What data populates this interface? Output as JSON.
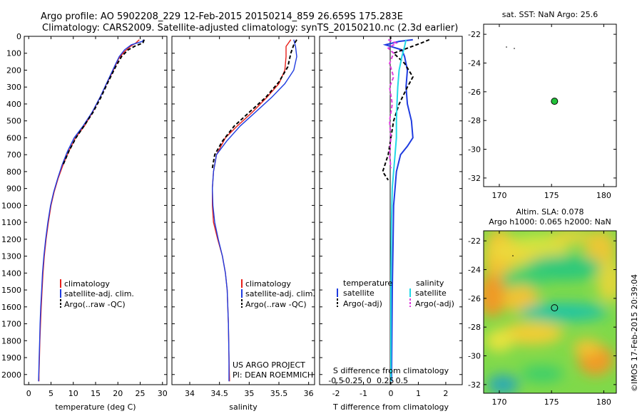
{
  "titles": {
    "line1": "Argo profile: AO 5902208_229 12-Feb-2015 20150214_859 26.659S 175.283E",
    "line2": "Climatology: CARS2009. Satellite-adjusted climatology: synTS_20150210.nc (2.3d earlier)"
  },
  "colors": {
    "climatology": "#e8201a",
    "satellite": "#1f3ce0",
    "argo": "#000000",
    "sat_salinity": "#22d8e6",
    "argo_salinity": "#e03ce0",
    "float_marker": "#22c23a"
  },
  "credit": "©IMOS 17-Feb-2015 20:39:04",
  "chart_data": [
    {
      "id": "temperature-profile",
      "type": "line",
      "xlabel": "temperature (deg C)",
      "ylabel": "",
      "xlim": [
        -1,
        31
      ],
      "ylim": [
        2060,
        0
      ],
      "xticks": [
        0,
        5,
        10,
        15,
        20,
        25,
        30
      ],
      "yticks": [
        0,
        100,
        200,
        300,
        400,
        500,
        600,
        700,
        800,
        900,
        1000,
        1100,
        1200,
        1300,
        1400,
        1500,
        1600,
        1700,
        1800,
        1900,
        2000
      ],
      "legend": [
        "climatology",
        "satellite-adj. clim.",
        "Argo(..raw -QC)"
      ],
      "series": [
        {
          "key": "climatology",
          "color": "#e8201a",
          "dash": "",
          "points": [
            [
              24.8,
              20
            ],
            [
              24,
              40
            ],
            [
              22.8,
              60
            ],
            [
              21.5,
              90
            ],
            [
              20.2,
              130
            ],
            [
              19,
              200
            ],
            [
              17.5,
              280
            ],
            [
              16,
              360
            ],
            [
              14.3,
              450
            ],
            [
              12.5,
              530
            ],
            [
              10.5,
              600
            ],
            [
              9,
              680
            ],
            [
              7.7,
              760
            ],
            [
              6.6,
              840
            ],
            [
              5.7,
              920
            ],
            [
              5,
              1000
            ],
            [
              4.4,
              1100
            ],
            [
              3.9,
              1200
            ],
            [
              3.5,
              1300
            ],
            [
              3.2,
              1400
            ],
            [
              3,
              1500
            ],
            [
              2.8,
              1600
            ],
            [
              2.65,
              1700
            ],
            [
              2.5,
              1800
            ],
            [
              2.4,
              1900
            ],
            [
              2.3,
              2000
            ],
            [
              2.3,
              2040
            ]
          ]
        },
        {
          "key": "satellite",
          "color": "#1f3ce0",
          "dash": "",
          "points": [
            [
              25.8,
              20
            ],
            [
              25.5,
              30
            ],
            [
              23,
              50
            ],
            [
              21.5,
              80
            ],
            [
              20.3,
              120
            ],
            [
              19.2,
              180
            ],
            [
              17.6,
              270
            ],
            [
              16,
              360
            ],
            [
              14.2,
              450
            ],
            [
              12.2,
              530
            ],
            [
              10.2,
              600
            ],
            [
              8.7,
              680
            ],
            [
              7.5,
              760
            ],
            [
              6.5,
              840
            ],
            [
              5.6,
              920
            ],
            [
              4.9,
              1000
            ],
            [
              4.3,
              1100
            ],
            [
              3.8,
              1200
            ],
            [
              3.4,
              1300
            ],
            [
              3.1,
              1400
            ],
            [
              2.9,
              1500
            ],
            [
              2.7,
              1600
            ],
            [
              2.55,
              1700
            ],
            [
              2.45,
              1800
            ],
            [
              2.35,
              1900
            ],
            [
              2.25,
              2000
            ],
            [
              2.2,
              2040
            ]
          ]
        },
        {
          "key": "argo",
          "color": "#000000",
          "dash": "5,3",
          "points": [
            [
              25.9,
              20
            ],
            [
              25.6,
              40
            ],
            [
              24,
              55
            ],
            [
              22.3,
              80
            ],
            [
              20.8,
              120
            ],
            [
              19.5,
              180
            ],
            [
              17.8,
              270
            ],
            [
              16.2,
              360
            ],
            [
              14.4,
              450
            ],
            [
              12.4,
              530
            ],
            [
              10.6,
              600
            ],
            [
              9,
              680
            ],
            [
              7.7,
              760
            ]
          ]
        }
      ]
    },
    {
      "id": "salinity-profile",
      "type": "line",
      "xlabel": "salinity",
      "ylabel": "",
      "xlim": [
        33.7,
        36.1
      ],
      "ylim": [
        2060,
        0
      ],
      "xticks": [
        34,
        34.5,
        35,
        35.5,
        36
      ],
      "legend": [
        "climatology",
        "satellite-adj. clim.",
        "Argo(..raw -QC)"
      ],
      "series": [
        {
          "key": "climatology",
          "color": "#e8201a",
          "dash": "",
          "points": [
            [
              35.7,
              20
            ],
            [
              35.62,
              60
            ],
            [
              35.62,
              120
            ],
            [
              35.6,
              200
            ],
            [
              35.5,
              280
            ],
            [
              35.3,
              360
            ],
            [
              35.05,
              450
            ],
            [
              34.8,
              530
            ],
            [
              34.6,
              600
            ],
            [
              34.45,
              700
            ],
            [
              34.4,
              800
            ],
            [
              34.38,
              900
            ],
            [
              34.38,
              1000
            ],
            [
              34.4,
              1100
            ],
            [
              34.47,
              1200
            ],
            [
              34.55,
              1300
            ],
            [
              34.6,
              1400
            ],
            [
              34.63,
              1500
            ],
            [
              34.65,
              1700
            ],
            [
              34.66,
              1900
            ],
            [
              34.67,
              2040
            ]
          ]
        },
        {
          "key": "satellite",
          "color": "#1f3ce0",
          "dash": "",
          "points": [
            [
              35.75,
              20
            ],
            [
              35.78,
              60
            ],
            [
              35.8,
              120
            ],
            [
              35.75,
              200
            ],
            [
              35.6,
              280
            ],
            [
              35.38,
              360
            ],
            [
              35.1,
              450
            ],
            [
              34.85,
              530
            ],
            [
              34.62,
              620
            ],
            [
              34.45,
              700
            ],
            [
              34.4,
              800
            ],
            [
              34.38,
              900
            ],
            [
              34.39,
              1000
            ],
            [
              34.42,
              1100
            ],
            [
              34.48,
              1200
            ],
            [
              34.55,
              1300
            ],
            [
              34.6,
              1400
            ],
            [
              34.63,
              1500
            ],
            [
              34.65,
              1700
            ],
            [
              34.66,
              1900
            ],
            [
              34.66,
              2040
            ]
          ]
        },
        {
          "key": "argo",
          "color": "#000000",
          "dash": "5,3",
          "points": [
            [
              35.8,
              20
            ],
            [
              35.75,
              50
            ],
            [
              35.7,
              100
            ],
            [
              35.65,
              180
            ],
            [
              35.5,
              270
            ],
            [
              35.28,
              360
            ],
            [
              35,
              450
            ],
            [
              34.75,
              530
            ],
            [
              34.55,
              620
            ],
            [
              34.42,
              700
            ],
            [
              34.38,
              780
            ]
          ]
        }
      ]
    },
    {
      "id": "difference-profile",
      "type": "line",
      "xlabel": "T difference from climatology",
      "xlabel2": "S difference from climatology",
      "xlim": [
        -2.6,
        2.6
      ],
      "ylim": [
        2060,
        0
      ],
      "xticks": [
        -2,
        -1,
        0,
        1,
        2
      ],
      "xticks2": [
        -0.5,
        -0.25,
        0,
        0.25,
        0.5
      ],
      "legend_header": [
        "temperature",
        "salinity"
      ],
      "legend": [
        "satellite",
        "Argo(-adj)",
        "satellite",
        "Argo(-adj)"
      ],
      "series": [
        {
          "key": "T satellite",
          "color": "#1f3ce0",
          "dash": "",
          "points": [
            [
              0.8,
              20
            ],
            [
              0.3,
              30
            ],
            [
              -0.2,
              50
            ],
            [
              0.4,
              80
            ],
            [
              0.5,
              120
            ],
            [
              0.6,
              200
            ],
            [
              0.55,
              300
            ],
            [
              0.6,
              400
            ],
            [
              0.75,
              500
            ],
            [
              0.8,
              600
            ],
            [
              0.6,
              650
            ],
            [
              0.35,
              700
            ],
            [
              0.2,
              800
            ],
            [
              0.15,
              900
            ],
            [
              0.1,
              1000
            ],
            [
              0.08,
              1200
            ],
            [
              0.05,
              1500
            ],
            [
              0.02,
              2040
            ]
          ]
        },
        {
          "key": "T argo",
          "color": "#000000",
          "dash": "5,3",
          "points": [
            [
              1.4,
              20
            ],
            [
              1.1,
              40
            ],
            [
              0.6,
              70
            ],
            [
              0.1,
              100
            ],
            [
              0.5,
              160
            ],
            [
              0.8,
              240
            ],
            [
              0.6,
              300
            ],
            [
              0.3,
              400
            ],
            [
              0.1,
              500
            ],
            [
              0,
              600
            ],
            [
              -0.1,
              700
            ],
            [
              -0.3,
              800
            ],
            [
              -0.1,
              850
            ]
          ]
        },
        {
          "key": "S satellite",
          "color": "#22d8e6",
          "dash": "",
          "points": [
            [
              0.55,
              20
            ],
            [
              0.5,
              60
            ],
            [
              0.4,
              120
            ],
            [
              0.3,
              200
            ],
            [
              0.25,
              300
            ],
            [
              0.22,
              400
            ],
            [
              0.2,
              500
            ],
            [
              0.2,
              600
            ],
            [
              0.15,
              700
            ],
            [
              0.1,
              800
            ],
            [
              0.05,
              900
            ],
            [
              0.02,
              1100
            ],
            [
              0,
              1500
            ],
            [
              0,
              2040
            ]
          ]
        },
        {
          "key": "S argo",
          "color": "#e03ce0",
          "dash": "5,3",
          "points": [
            [
              -0.1,
              20
            ],
            [
              0.2,
              40
            ],
            [
              -0.1,
              70
            ],
            [
              0.1,
              100
            ],
            [
              -0.05,
              160
            ],
            [
              0.1,
              240
            ],
            [
              -0.05,
              300
            ],
            [
              0.05,
              400
            ],
            [
              -0.05,
              500
            ],
            [
              0,
              600
            ],
            [
              -0.05,
              700
            ],
            [
              0,
              780
            ]
          ]
        }
      ],
      "annotation": [
        "US ARGO PROJECT",
        "PI: DEAN ROEMMICH"
      ]
    },
    {
      "id": "sst-map",
      "type": "scatter",
      "title": "sat. SST: NaN Argo: 25.6",
      "xlim": [
        168.5,
        181.2
      ],
      "ylim": [
        -32.6,
        -21.3
      ],
      "xticks": [
        170,
        175,
        180
      ],
      "yticks": [
        -22,
        -24,
        -26,
        -28,
        -30,
        -32
      ],
      "points": [
        {
          "x": 175.283,
          "y": -26.659
        }
      ]
    },
    {
      "id": "sla-map",
      "type": "heatmap",
      "title_line1": "Altim. SLA: 0.078",
      "title_line2": "Argo h1000: 0.065 h2000: NaN",
      "xlim": [
        168.5,
        181.2
      ],
      "ylim": [
        -32.6,
        -21.3
      ],
      "xticks": [
        170,
        175,
        180
      ],
      "yticks": [
        -22,
        -24,
        -26,
        -28,
        -30,
        -32
      ],
      "points": [
        {
          "x": 175.283,
          "y": -26.659
        }
      ]
    }
  ]
}
